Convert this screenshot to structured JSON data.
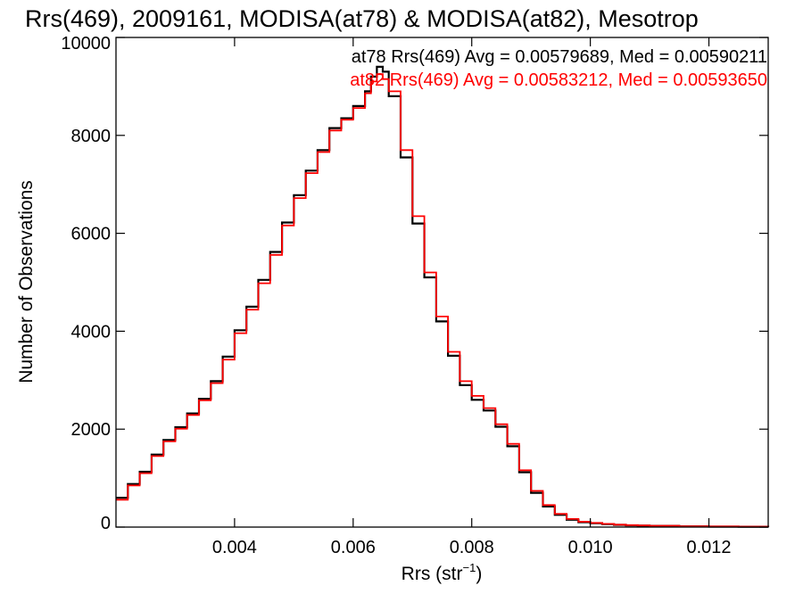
{
  "chart_data": {
    "type": "line",
    "title": "Rrs(469), 2009161, MODISA(at78) & MODISA(at82), Mesotrop",
    "xlabel_main": "Rrs (str",
    "xlabel_sup": "−1",
    "xlabel_close": ")",
    "ylabel": "Number of Observations",
    "xlim": [
      0.002,
      0.013
    ],
    "ylim": [
      0,
      10000
    ],
    "x_ticks": [
      {
        "value": 0.004,
        "label": "0.004"
      },
      {
        "value": 0.006,
        "label": "0.006"
      },
      {
        "value": 0.008,
        "label": "0.008"
      },
      {
        "value": 0.01,
        "label": "0.010"
      },
      {
        "value": 0.012,
        "label": "0.012"
      }
    ],
    "y_ticks": [
      {
        "value": 0,
        "label": "0"
      },
      {
        "value": 2000,
        "label": "2000"
      },
      {
        "value": 4000,
        "label": "4000"
      },
      {
        "value": 6000,
        "label": "6000"
      },
      {
        "value": 8000,
        "label": "8000"
      },
      {
        "value": 10000,
        "label": "10000"
      }
    ],
    "grid": false,
    "legend_position": "top-right",
    "series": [
      {
        "name": "at78",
        "color": "#000000",
        "stat_label": "at78 Rrs(469) Avg = 0.00579689, Med = 0.00590211",
        "points": [
          [
            0.002,
            600
          ],
          [
            0.0022,
            880
          ],
          [
            0.0024,
            1130
          ],
          [
            0.0026,
            1480
          ],
          [
            0.0028,
            1780
          ],
          [
            0.003,
            2040
          ],
          [
            0.0032,
            2320
          ],
          [
            0.0034,
            2620
          ],
          [
            0.0036,
            2980
          ],
          [
            0.0038,
            3480
          ],
          [
            0.004,
            4020
          ],
          [
            0.0042,
            4500
          ],
          [
            0.0044,
            5050
          ],
          [
            0.0046,
            5620
          ],
          [
            0.0048,
            6220
          ],
          [
            0.005,
            6780
          ],
          [
            0.0052,
            7280
          ],
          [
            0.0054,
            7700
          ],
          [
            0.0056,
            8150
          ],
          [
            0.0058,
            8350
          ],
          [
            0.006,
            8600
          ],
          [
            0.0062,
            8900
          ],
          [
            0.0063,
            9200
          ],
          [
            0.0064,
            9400
          ],
          [
            0.0065,
            9300
          ],
          [
            0.0066,
            8800
          ],
          [
            0.0068,
            7550
          ],
          [
            0.007,
            6200
          ],
          [
            0.0072,
            5100
          ],
          [
            0.0074,
            4200
          ],
          [
            0.0076,
            3500
          ],
          [
            0.0078,
            2900
          ],
          [
            0.008,
            2600
          ],
          [
            0.0082,
            2380
          ],
          [
            0.0084,
            2050
          ],
          [
            0.0086,
            1650
          ],
          [
            0.0088,
            1120
          ],
          [
            0.009,
            700
          ],
          [
            0.0092,
            420
          ],
          [
            0.0094,
            250
          ],
          [
            0.0096,
            150
          ],
          [
            0.0098,
            100
          ],
          [
            0.01,
            80
          ],
          [
            0.0102,
            60
          ],
          [
            0.0104,
            45
          ],
          [
            0.0106,
            35
          ],
          [
            0.0108,
            30
          ],
          [
            0.011,
            25
          ],
          [
            0.0115,
            15
          ],
          [
            0.012,
            10
          ],
          [
            0.0125,
            8
          ],
          [
            0.013,
            5
          ]
        ]
      },
      {
        "name": "at82",
        "color": "#ff0000",
        "stat_label": "at82 Rrs(469) Avg = 0.00583212, Med = 0.00593650",
        "points": [
          [
            0.002,
            560
          ],
          [
            0.0022,
            850
          ],
          [
            0.0024,
            1100
          ],
          [
            0.0026,
            1450
          ],
          [
            0.0028,
            1750
          ],
          [
            0.003,
            2010
          ],
          [
            0.0032,
            2290
          ],
          [
            0.0034,
            2590
          ],
          [
            0.0036,
            2940
          ],
          [
            0.0038,
            3420
          ],
          [
            0.004,
            3960
          ],
          [
            0.0042,
            4440
          ],
          [
            0.0044,
            4980
          ],
          [
            0.0046,
            5560
          ],
          [
            0.0048,
            6160
          ],
          [
            0.005,
            6720
          ],
          [
            0.0052,
            7230
          ],
          [
            0.0054,
            7660
          ],
          [
            0.0056,
            8100
          ],
          [
            0.0058,
            8320
          ],
          [
            0.006,
            8560
          ],
          [
            0.0062,
            8860
          ],
          [
            0.0063,
            9100
          ],
          [
            0.0064,
            9250
          ],
          [
            0.0065,
            9150
          ],
          [
            0.0066,
            8900
          ],
          [
            0.0068,
            7700
          ],
          [
            0.007,
            6350
          ],
          [
            0.0072,
            5200
          ],
          [
            0.0074,
            4300
          ],
          [
            0.0076,
            3580
          ],
          [
            0.0078,
            2980
          ],
          [
            0.008,
            2680
          ],
          [
            0.0082,
            2430
          ],
          [
            0.0084,
            2100
          ],
          [
            0.0086,
            1700
          ],
          [
            0.0088,
            1160
          ],
          [
            0.009,
            740
          ],
          [
            0.0092,
            450
          ],
          [
            0.0094,
            270
          ],
          [
            0.0096,
            165
          ],
          [
            0.0098,
            110
          ],
          [
            0.01,
            85
          ],
          [
            0.0102,
            65
          ],
          [
            0.0104,
            50
          ],
          [
            0.0106,
            40
          ],
          [
            0.0108,
            32
          ],
          [
            0.011,
            27
          ],
          [
            0.0115,
            17
          ],
          [
            0.012,
            12
          ],
          [
            0.0125,
            9
          ],
          [
            0.013,
            6
          ]
        ]
      }
    ]
  }
}
